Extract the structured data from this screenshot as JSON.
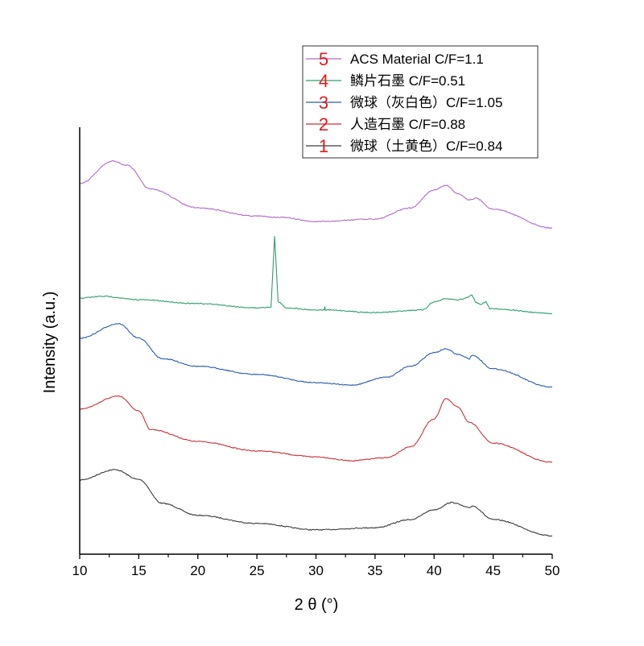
{
  "chart_data": {
    "type": "line",
    "xlabel": "2 θ (°)",
    "ylabel": "Intensity (a.u.)",
    "xlim": [
      10,
      50
    ],
    "ylim": [
      0,
      100
    ],
    "xticks": [
      10,
      15,
      20,
      25,
      30,
      35,
      40,
      45,
      50
    ],
    "yticks_shown": false,
    "grid": false,
    "legend_placement": "top-right",
    "series": [
      {
        "name": "微球（土黄色）C/F=0.84",
        "number": "1",
        "color": "#3a3a3a",
        "x": [
          10,
          13,
          15,
          17,
          20,
          25,
          30,
          35,
          38,
          40,
          41.5,
          43,
          43.2,
          45,
          50
        ],
        "y": [
          17.4,
          19.8,
          17.5,
          11.9,
          9.1,
          7.2,
          5.7,
          6.2,
          8.1,
          10.4,
          12.1,
          10.9,
          11.3,
          8.1,
          4.3
        ]
      },
      {
        "name": "人造石墨 C/F=0.88",
        "number": "2",
        "color": "#c8323c",
        "x": [
          10,
          13.3,
          15,
          16,
          20,
          25,
          30,
          33,
          36,
          38,
          40,
          41,
          42,
          43,
          45,
          50
        ],
        "y": [
          34.0,
          37.0,
          33.6,
          29.2,
          26.4,
          24.2,
          22.8,
          21.9,
          22.6,
          25.1,
          31.7,
          36.4,
          34.5,
          30.8,
          26.0,
          21.5
        ]
      },
      {
        "name": "微球（灰白色）C/F=1.05",
        "number": "3",
        "color": "#2a5ea8",
        "x": [
          10,
          13.3,
          15,
          17,
          20,
          25,
          30,
          33,
          36,
          38,
          40,
          41,
          42,
          43,
          43.2,
          45,
          50
        ],
        "y": [
          50.6,
          54.0,
          50.6,
          45.8,
          44.0,
          42.1,
          40.2,
          39.6,
          41.5,
          44.0,
          47.2,
          48.1,
          46.8,
          45.8,
          46.6,
          43.4,
          39.1
        ]
      },
      {
        "name": "鳞片石墨 C/F=0.51",
        "number": "4",
        "color": "#2e9e6a",
        "x": [
          10,
          12,
          15,
          20,
          25,
          26.2,
          26.5,
          26.8,
          27.5,
          30,
          30.7,
          30.75,
          30.8,
          35,
          39,
          40,
          41,
          42,
          42.5,
          43,
          43.2,
          43.5,
          44,
          44.4,
          44.7,
          50
        ],
        "y": [
          60.0,
          60.4,
          59.6,
          58.7,
          57.7,
          57.9,
          74.5,
          59.1,
          57.7,
          57.2,
          57.2,
          57.9,
          57.2,
          56.6,
          57.2,
          59.1,
          59.8,
          59.6,
          59.8,
          60.4,
          60.8,
          59.1,
          58.5,
          59.2,
          57.5,
          56.4
        ]
      },
      {
        "name": "ACS Material C/F=1.1",
        "number": "5",
        "color": "#b06ac8",
        "x": [
          10,
          12.8,
          14,
          16,
          20,
          25,
          27,
          30,
          35,
          38,
          40,
          41,
          42,
          43,
          43.5,
          45,
          50
        ],
        "y": [
          86.8,
          92.1,
          91.1,
          85.5,
          81.1,
          79.2,
          78.9,
          77.9,
          78.5,
          81.1,
          85.3,
          86.4,
          84.5,
          83.0,
          83.4,
          80.8,
          76.4
        ]
      }
    ],
    "legend_order": [
      4,
      3,
      2,
      1,
      0
    ]
  }
}
